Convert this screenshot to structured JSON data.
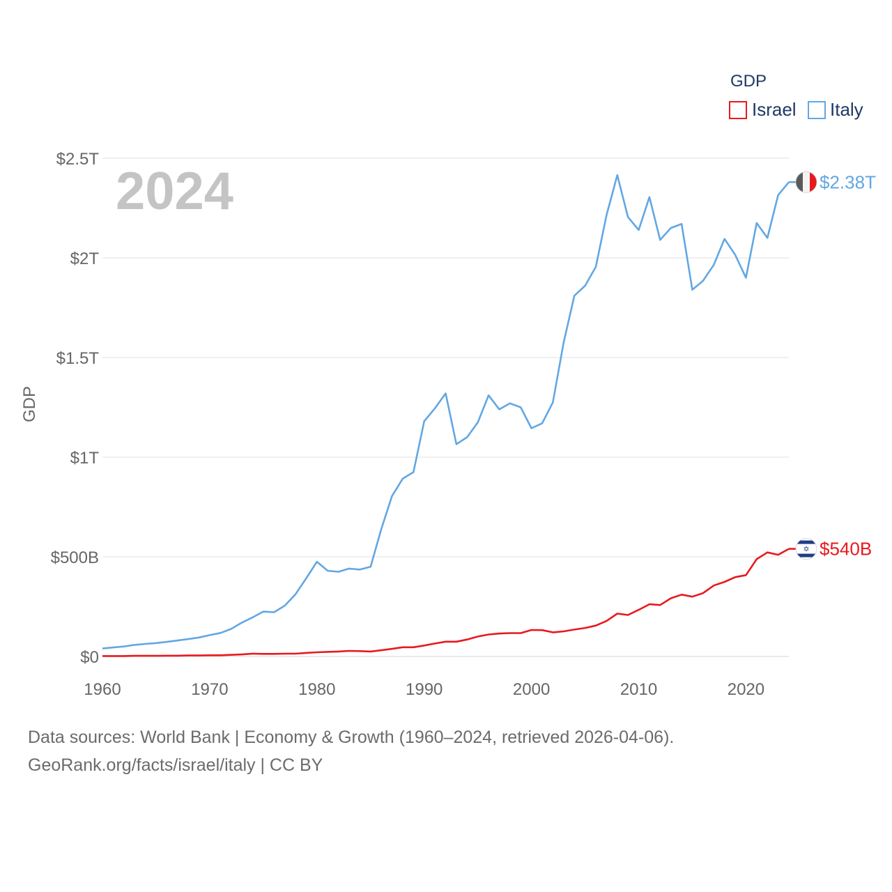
{
  "chart_data": {
    "type": "line",
    "legend_title": "GDP",
    "ylabel": "GDP",
    "year_label": "2024",
    "xlim": [
      1960,
      2024
    ],
    "ylim": [
      0,
      2500
    ],
    "units": "billions USD",
    "x_ticks": [
      {
        "value": 1960,
        "label": "1960"
      },
      {
        "value": 1970,
        "label": "1970"
      },
      {
        "value": 1980,
        "label": "1980"
      },
      {
        "value": 1990,
        "label": "1990"
      },
      {
        "value": 2000,
        "label": "2000"
      },
      {
        "value": 2010,
        "label": "2010"
      },
      {
        "value": 2020,
        "label": "2020"
      }
    ],
    "y_ticks": [
      {
        "value": 0,
        "label": "$0"
      },
      {
        "value": 500,
        "label": "$500B"
      },
      {
        "value": 1000,
        "label": "$1T"
      },
      {
        "value": 1500,
        "label": "$1.5T"
      },
      {
        "value": 2000,
        "label": "$2T"
      },
      {
        "value": 2500,
        "label": "$2.5T"
      }
    ],
    "series": [
      {
        "name": "Israel",
        "color": "#e8191e",
        "end_label": "$540B",
        "flag": "israel-flag-icon",
        "points": [
          [
            1960,
            2
          ],
          [
            1961,
            2
          ],
          [
            1962,
            2
          ],
          [
            1963,
            3
          ],
          [
            1964,
            3
          ],
          [
            1965,
            3
          ],
          [
            1966,
            4
          ],
          [
            1967,
            4
          ],
          [
            1968,
            5
          ],
          [
            1969,
            5
          ],
          [
            1970,
            6
          ],
          [
            1971,
            6
          ],
          [
            1972,
            8
          ],
          [
            1973,
            10
          ],
          [
            1974,
            14
          ],
          [
            1975,
            13
          ],
          [
            1976,
            13
          ],
          [
            1977,
            14
          ],
          [
            1978,
            14
          ],
          [
            1979,
            18
          ],
          [
            1980,
            21
          ],
          [
            1981,
            23
          ],
          [
            1982,
            25
          ],
          [
            1983,
            28
          ],
          [
            1984,
            27
          ],
          [
            1985,
            25
          ],
          [
            1986,
            31
          ],
          [
            1987,
            38
          ],
          [
            1988,
            46
          ],
          [
            1989,
            46
          ],
          [
            1990,
            55
          ],
          [
            1991,
            65
          ],
          [
            1992,
            74
          ],
          [
            1993,
            74
          ],
          [
            1994,
            85
          ],
          [
            1995,
            100
          ],
          [
            1996,
            110
          ],
          [
            1997,
            115
          ],
          [
            1998,
            117
          ],
          [
            1999,
            117
          ],
          [
            2000,
            133
          ],
          [
            2001,
            132
          ],
          [
            2002,
            121
          ],
          [
            2003,
            126
          ],
          [
            2004,
            135
          ],
          [
            2005,
            143
          ],
          [
            2006,
            155
          ],
          [
            2007,
            178
          ],
          [
            2008,
            215
          ],
          [
            2009,
            208
          ],
          [
            2010,
            234
          ],
          [
            2011,
            262
          ],
          [
            2012,
            258
          ],
          [
            2013,
            292
          ],
          [
            2014,
            310
          ],
          [
            2015,
            300
          ],
          [
            2016,
            318
          ],
          [
            2017,
            356
          ],
          [
            2018,
            374
          ],
          [
            2019,
            398
          ],
          [
            2020,
            408
          ],
          [
            2021,
            488
          ],
          [
            2022,
            522
          ],
          [
            2023,
            510
          ],
          [
            2024,
            540
          ]
        ]
      },
      {
        "name": "Italy",
        "color": "#62a7e3",
        "end_label": "$2.38T",
        "flag": "italy-flag-icon",
        "points": [
          [
            1960,
            40
          ],
          [
            1961,
            45
          ],
          [
            1962,
            50
          ],
          [
            1963,
            58
          ],
          [
            1964,
            63
          ],
          [
            1965,
            67
          ],
          [
            1966,
            73
          ],
          [
            1967,
            80
          ],
          [
            1968,
            87
          ],
          [
            1969,
            95
          ],
          [
            1970,
            107
          ],
          [
            1971,
            118
          ],
          [
            1972,
            138
          ],
          [
            1973,
            170
          ],
          [
            1974,
            196
          ],
          [
            1975,
            225
          ],
          [
            1976,
            222
          ],
          [
            1977,
            255
          ],
          [
            1978,
            312
          ],
          [
            1979,
            392
          ],
          [
            1980,
            475
          ],
          [
            1981,
            430
          ],
          [
            1982,
            425
          ],
          [
            1983,
            441
          ],
          [
            1984,
            436
          ],
          [
            1985,
            450
          ],
          [
            1986,
            640
          ],
          [
            1987,
            805
          ],
          [
            1988,
            892
          ],
          [
            1989,
            925
          ],
          [
            1990,
            1180
          ],
          [
            1991,
            1245
          ],
          [
            1992,
            1320
          ],
          [
            1993,
            1065
          ],
          [
            1994,
            1100
          ],
          [
            1995,
            1175
          ],
          [
            1996,
            1310
          ],
          [
            1997,
            1240
          ],
          [
            1998,
            1270
          ],
          [
            1999,
            1250
          ],
          [
            2000,
            1145
          ],
          [
            2001,
            1170
          ],
          [
            2002,
            1275
          ],
          [
            2003,
            1575
          ],
          [
            2004,
            1810
          ],
          [
            2005,
            1860
          ],
          [
            2006,
            1955
          ],
          [
            2007,
            2215
          ],
          [
            2008,
            2415
          ],
          [
            2009,
            2205
          ],
          [
            2010,
            2140
          ],
          [
            2011,
            2305
          ],
          [
            2012,
            2090
          ],
          [
            2013,
            2150
          ],
          [
            2014,
            2170
          ],
          [
            2015,
            1840
          ],
          [
            2016,
            1885
          ],
          [
            2017,
            1965
          ],
          [
            2018,
            2095
          ],
          [
            2019,
            2015
          ],
          [
            2020,
            1900
          ],
          [
            2021,
            2175
          ],
          [
            2022,
            2100
          ],
          [
            2023,
            2315
          ],
          [
            2024,
            2380
          ]
        ]
      }
    ]
  },
  "footer": {
    "line1": "Data sources: World Bank | Economy & Growth (1960–2024, retrieved 2026-04-06).",
    "line2": "GeoRank.org/facts/israel/italy | CC BY"
  }
}
